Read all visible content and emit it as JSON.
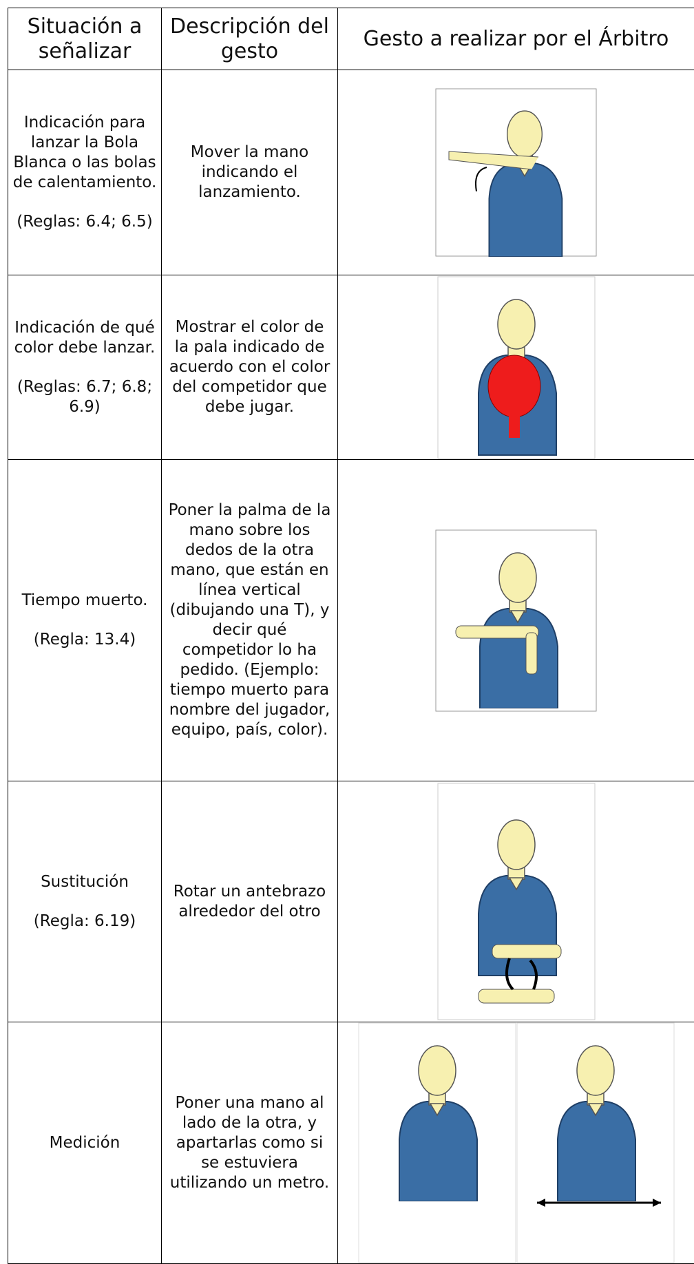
{
  "table": {
    "headers": [
      "Situación a señalizar",
      "Descripción del gesto",
      "Gesto a realizar por el Árbitro"
    ],
    "rows": [
      {
        "situation": "Indicación para lanzar la Bola Blanca o las bolas de calentamiento.",
        "rule": "(Reglas: 6.4; 6.5)",
        "description": "Mover la mano indicando el lanzamiento."
      },
      {
        "situation": "Indicación de qué color debe lanzar.",
        "rule": "(Reglas: 6.7; 6.8; 6.9)",
        "description": "Mostrar el color de la pala indicado de acuerdo con el color del competidor que debe jugar."
      },
      {
        "situation": "Tiempo muerto.",
        "rule": "(Regla: 13.4)",
        "description": "Poner la palma de la mano sobre los dedos de la otra mano, que están en línea vertical (dibujando una T), y decir qué competidor lo ha pedido. (Ejemplo: tiempo muerto para nombre del jugador, equipo, país, color)."
      },
      {
        "situation": "Sustitución",
        "rule": "(Regla: 6.19)",
        "description": "Rotar un antebrazo alrededor del otro"
      },
      {
        "situation": "Medición",
        "description": "Poner una mano al lado de la otra, y apartarlas como si se estuviera utilizando un metro."
      }
    ]
  }
}
